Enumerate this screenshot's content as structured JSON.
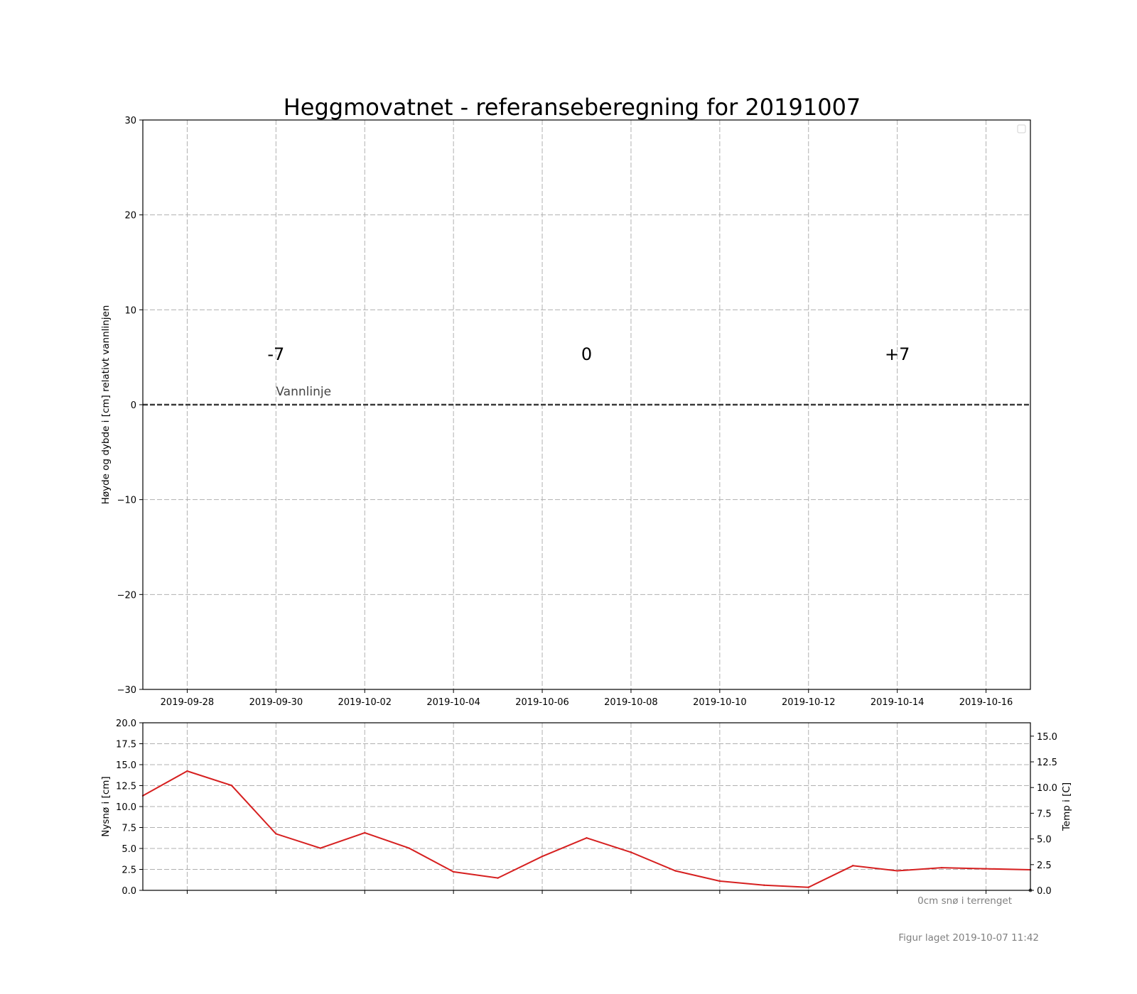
{
  "figure": {
    "title": "Heggmovatnet - referanseberegning for 20191007",
    "footer": "Figur laget 2019-10-07 11:42"
  },
  "chart_data": [
    {
      "type": "line",
      "ylabel": "Høyde og dybde i [cm] relativt vannlinjen",
      "ylim": [
        -30,
        30
      ],
      "yticks": [
        30,
        20,
        10,
        0,
        -10,
        -20,
        -30
      ],
      "ytick_labels": [
        "30",
        "20",
        "10",
        "0",
        "−10",
        "−20",
        "−30"
      ],
      "xlim": [
        "2019-09-27",
        "2019-10-17"
      ],
      "xticks": [
        "2019-09-28",
        "2019-09-30",
        "2019-10-02",
        "2019-10-04",
        "2019-10-06",
        "2019-10-08",
        "2019-10-10",
        "2019-10-12",
        "2019-10-14",
        "2019-10-16"
      ],
      "grid": true,
      "waterline": {
        "y": 0,
        "label": "Vannlinje",
        "label_x": "2019-09-30"
      },
      "annotations": [
        {
          "text": "-7",
          "x": "2019-09-30",
          "y": 4.7
        },
        {
          "text": "0",
          "x": "2019-10-07",
          "y": 4.7
        },
        {
          "text": "+7",
          "x": "2019-10-14",
          "y": 4.7
        }
      ],
      "legend": "top-right",
      "series": []
    },
    {
      "type": "line",
      "ylabel": "Nysnø i [cm]",
      "ylim": [
        0,
        20
      ],
      "yticks": [
        0,
        2.5,
        5,
        7.5,
        10,
        12.5,
        15,
        17.5,
        20
      ],
      "ytick_labels": [
        "0.0",
        "2.5",
        "5.0",
        "7.5",
        "10.0",
        "12.5",
        "15.0",
        "17.5",
        "20.0"
      ],
      "y2label": "Temp i [C]",
      "y2lim": [
        0,
        16.3
      ],
      "y2ticks": [
        0,
        2.5,
        5,
        7.5,
        10,
        12.5,
        15
      ],
      "y2tick_labels": [
        "0.0",
        "2.5",
        "5.0",
        "7.5",
        "10.0",
        "12.5",
        "15.0"
      ],
      "xlim": [
        "2019-09-27",
        "2019-10-17"
      ],
      "grid": true,
      "note": "0cm snø i terrenget",
      "snow_series": {
        "x": [
          "2019-10-17"
        ],
        "values": [
          0
        ]
      },
      "temperature_series": {
        "color": "#d62020",
        "x": [
          "2019-09-27",
          "2019-09-28",
          "2019-09-29",
          "2019-09-30",
          "2019-10-01",
          "2019-10-02",
          "2019-10-03",
          "2019-10-04",
          "2019-10-05",
          "2019-10-06",
          "2019-10-07",
          "2019-10-08",
          "2019-10-09",
          "2019-10-10",
          "2019-10-11",
          "2019-10-12",
          "2019-10-13",
          "2019-10-14",
          "2019-10-15",
          "2019-10-16",
          "2019-10-17"
        ],
        "values": [
          9.2,
          11.6,
          10.2,
          5.5,
          4.1,
          5.6,
          4.1,
          1.8,
          1.2,
          3.3,
          5.1,
          3.7,
          1.9,
          0.9,
          0.5,
          0.3,
          2.4,
          1.9,
          2.2,
          2.1,
          2.0
        ]
      }
    }
  ]
}
